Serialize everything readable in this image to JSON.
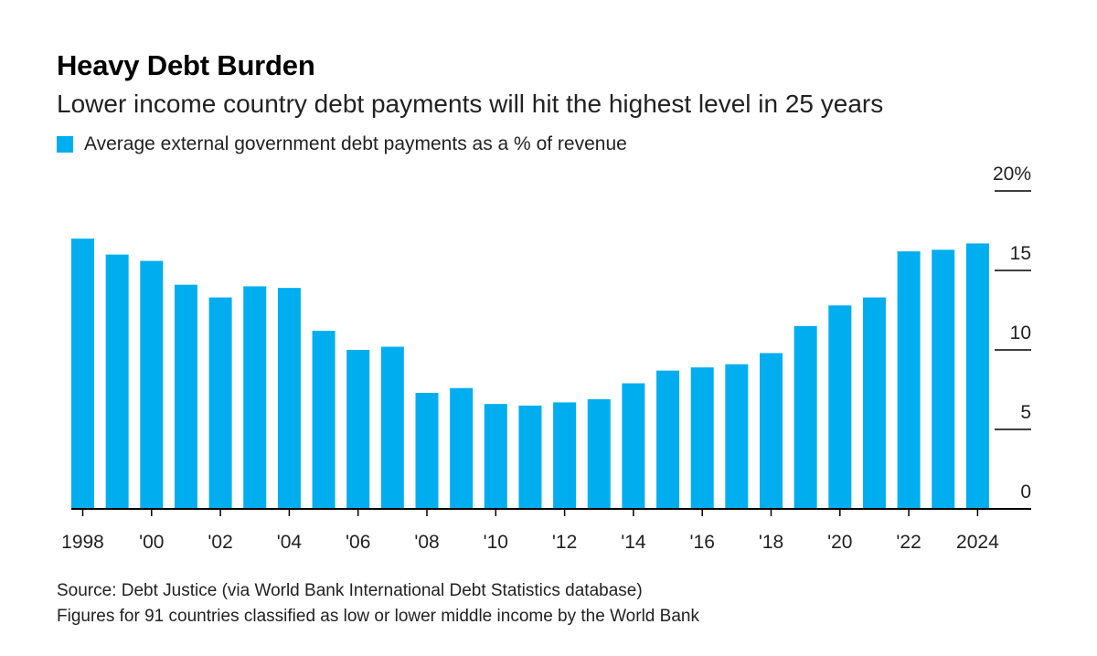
{
  "colors": {
    "bar": "#00adef",
    "axis": "#000000",
    "tick": "#222222"
  },
  "title": "Heavy Debt Burden",
  "subtitle": "Lower income country debt payments will hit the highest level in 25 years",
  "legend": {
    "label": "Average external government debt payments as a % of revenue"
  },
  "footer": {
    "source": "Source: Debt Justice (via World Bank International Debt Statistics database)",
    "note": "Figures for 91 countries classified as low or lower middle income by the World Bank"
  },
  "chart_data": {
    "type": "bar",
    "categories": [
      "1998",
      "1999",
      "2000",
      "2001",
      "2002",
      "2003",
      "2004",
      "2005",
      "2006",
      "2007",
      "2008",
      "2009",
      "2010",
      "2011",
      "2012",
      "2013",
      "2014",
      "2015",
      "2016",
      "2017",
      "2018",
      "2019",
      "2020",
      "2021",
      "2022",
      "2023",
      "2024"
    ],
    "series": [
      {
        "name": "Average external government debt payments as a % of revenue",
        "values": [
          17.0,
          16.0,
          15.6,
          14.1,
          13.3,
          14.0,
          13.9,
          11.2,
          10.0,
          10.2,
          7.3,
          7.6,
          6.6,
          6.5,
          6.7,
          6.9,
          7.9,
          8.7,
          8.9,
          9.1,
          9.8,
          11.5,
          12.8,
          13.3,
          16.2,
          16.3,
          16.7
        ]
      }
    ],
    "x_tick_labels": [
      {
        "index": 0,
        "label": "1998"
      },
      {
        "index": 2,
        "label": "'00"
      },
      {
        "index": 4,
        "label": "'02"
      },
      {
        "index": 6,
        "label": "'04"
      },
      {
        "index": 8,
        "label": "'06"
      },
      {
        "index": 10,
        "label": "'08"
      },
      {
        "index": 12,
        "label": "'10"
      },
      {
        "index": 14,
        "label": "'12"
      },
      {
        "index": 16,
        "label": "'14"
      },
      {
        "index": 18,
        "label": "'16"
      },
      {
        "index": 20,
        "label": "'18"
      },
      {
        "index": 22,
        "label": "'20"
      },
      {
        "index": 24,
        "label": "'22"
      },
      {
        "index": 26,
        "label": "2024"
      }
    ],
    "y_ticks": [
      {
        "value": 0,
        "label": "0"
      },
      {
        "value": 5,
        "label": "5"
      },
      {
        "value": 10,
        "label": "10"
      },
      {
        "value": 15,
        "label": "15"
      },
      {
        "value": 20,
        "label": "20%"
      }
    ],
    "ylim": [
      0,
      20
    ],
    "y_axis_position": "right",
    "grid": false,
    "legend_position": "top-left"
  }
}
